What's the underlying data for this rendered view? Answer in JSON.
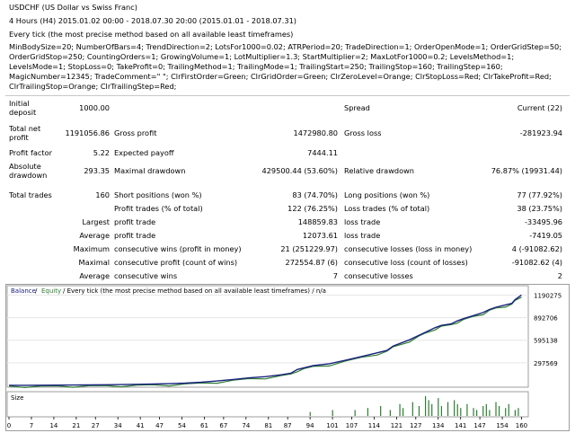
{
  "header": {
    "symbol": "USDCHF (US Dollar vs Swiss Franc)",
    "period": "4 Hours (H4) 2015.01.02 00:00 - 2018.07.30 20:00 (2015.01.01 - 2018.07.31)",
    "model": "Every tick (the most precise method based on all available least timeframes)",
    "parameters": "MinBodySize=20; NumberOfBars=4; TrendDirection=2; LotsFor1000=0.02; ATRPeriod=20; TradeDirection=1; OrderOpenMode=1; OrderGridStep=50; OrderGridStop=250; CountingOrders=1; GrowingVolume=1; LotMultiplier=1.3; StartMultiplier=2; MaxLotFor1000=0.2; LevelsMethod=1; LevelsMode=1; StopLoss=0; TakeProfit=0; TrailingMethod=1; TrailingMode=1; TrailingStart=250; TrailingStop=160; TrailingStep=160; MagicNumber=12345; TradeComment=\" \"; ClrFirstOrder=Green; ClrGridOrder=Green; ClrZeroLevel=Orange; ClrStopLoss=Red; ClrTakeProfit=Red; ClrTrailingStop=Orange; ClrTrailingStep=Red;"
  },
  "stats": {
    "initial_deposit_l1": "Initial",
    "initial_deposit_l2": "deposit",
    "initial_deposit": "1000.00",
    "spread_label": "Spread",
    "spread_value": "Current (22)",
    "total_net_l1": "Total net",
    "total_net_l2": "profit",
    "total_net_profit": "1191056.86",
    "gross_profit_label": "Gross profit",
    "gross_profit": "1472980.80",
    "gross_loss_label": "Gross loss",
    "gross_loss": "-281923.94",
    "profit_factor_label": "Profit factor",
    "profit_factor": "5.22",
    "expected_payoff_label": "Expected payoff",
    "expected_payoff": "7444.11",
    "abs_dd_l1": "Absolute",
    "abs_dd_l2": "drawdown",
    "absolute_drawdown": "293.35",
    "max_dd_label": "Maximal drawdown",
    "maximal_drawdown": "429500.44 (53.60%)",
    "rel_dd_label": "Relative drawdown",
    "relative_drawdown": "76.87% (19931.44)",
    "total_trades_label": "Total trades",
    "total_trades": "160",
    "short_label": "Short positions (won %)",
    "short_value": "83 (74.70%)",
    "long_label": "Long positions (won %)",
    "long_value": "77 (77.92%)",
    "profit_trades_label": "Profit trades (% of total)",
    "profit_trades": "122 (76.25%)",
    "loss_trades_label": "Loss trades (% of total)",
    "loss_trades": "38 (23.75%)",
    "largest_label": "Largest",
    "largest_profit_label": "profit trade",
    "largest_profit": "148859.83",
    "largest_loss_label": "loss trade",
    "largest_loss": "-33495.96",
    "average_label": "Average",
    "average_profit_label": "profit trade",
    "average_profit": "12073.61",
    "average_loss_label": "loss trade",
    "average_loss": "-7419.05",
    "maximum_label": "Maximum",
    "max_cons_wins_label": "consecutive wins (profit in money)",
    "max_cons_wins": "21 (251229.97)",
    "max_cons_losses_label": "consecutive losses (loss in money)",
    "max_cons_losses": "4 (-91082.62)",
    "maximal_label": "Maximal",
    "maximal_cons_profit_label": "consecutive profit (count of wins)",
    "maximal_cons_profit": "272554.87 (6)",
    "maximal_cons_loss_label": "consecutive loss (count of losses)",
    "maximal_cons_loss": "-91082.62 (4)",
    "average2_label": "Average",
    "avg_cons_wins_label": "consecutive wins",
    "avg_cons_wins": "7",
    "avg_cons_losses_label": "consecutive losses",
    "avg_cons_losses": "2"
  },
  "chart_data": [
    {
      "type": "line",
      "legend_balance": "Balance",
      "legend_sep": " / ",
      "legend_equity": "Equity",
      "legend_rest": " / Every tick (the most precise method based on all available least timeframes) / n/a",
      "colors": {
        "balance": "#1a237e",
        "equity": "#2e7d32"
      },
      "ylim": [
        0,
        1290000
      ],
      "yticks": [
        "1190275",
        "892706",
        "595138",
        "297569"
      ],
      "ytick_values": [
        1190275,
        892706,
        595138,
        297569
      ],
      "xlim": [
        0,
        161
      ],
      "x": [
        0,
        5,
        10,
        15,
        20,
        25,
        30,
        35,
        40,
        45,
        50,
        55,
        60,
        65,
        70,
        75,
        80,
        85,
        88,
        90,
        92,
        95,
        100,
        105,
        110,
        115,
        118,
        120,
        125,
        128,
        130,
        133,
        135,
        138,
        140,
        142,
        145,
        148,
        150,
        152,
        155,
        157,
        158,
        160
      ],
      "balance": [
        1000,
        1500,
        2500,
        3500,
        5000,
        6500,
        8500,
        11000,
        14000,
        18000,
        22000,
        30000,
        42000,
        58000,
        78000,
        100000,
        115000,
        140000,
        160000,
        210000,
        230000,
        260000,
        285000,
        330000,
        380000,
        430000,
        460000,
        520000,
        600000,
        660000,
        700000,
        760000,
        790000,
        810000,
        850000,
        880000,
        920000,
        960000,
        1000000,
        1030000,
        1060000,
        1080000,
        1130000,
        1191056
      ]
    },
    {
      "type": "bar",
      "title": "Size",
      "xticks": [
        "0",
        "7",
        "14",
        "21",
        "27",
        "34",
        "41",
        "47",
        "54",
        "61",
        "67",
        "74",
        "81",
        "87",
        "94",
        "101",
        "107",
        "114",
        "121",
        "127",
        "134",
        "141",
        "147",
        "154",
        "160"
      ],
      "x": [
        94,
        101,
        108,
        112,
        116,
        119,
        122,
        123,
        126,
        128,
        130,
        131,
        132,
        134,
        135,
        137,
        139,
        140,
        141,
        143,
        145,
        146,
        148,
        149,
        150,
        152,
        153,
        155,
        156,
        158,
        159
      ],
      "values": [
        0.2,
        0.3,
        0.3,
        0.4,
        0.5,
        0.3,
        0.6,
        0.4,
        0.7,
        0.5,
        1.0,
        0.8,
        0.6,
        0.9,
        0.5,
        0.7,
        0.8,
        0.6,
        0.4,
        0.6,
        0.4,
        0.3,
        0.5,
        0.6,
        0.3,
        0.7,
        0.5,
        0.4,
        0.6,
        0.3,
        0.4
      ]
    }
  ]
}
